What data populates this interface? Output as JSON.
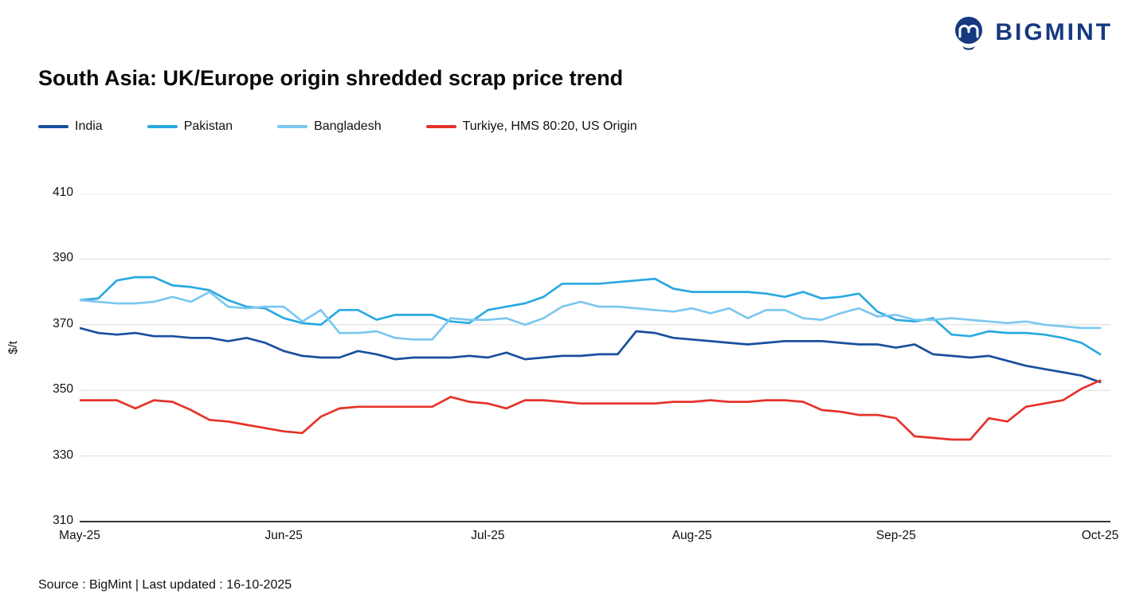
{
  "header": {
    "brand": "BIGMINT",
    "title": "South Asia: UK/Europe origin shredded scrap price trend"
  },
  "footer": {
    "text": "Source : BigMint | Last updated : 16-10-2025"
  },
  "colors": {
    "brand_navy": "#16397f",
    "grid": "#dcdcdc",
    "axis": "#1a1a1a"
  },
  "chart_data": {
    "type": "line",
    "title": "South Asia: UK/Europe origin shredded scrap price trend",
    "xlabel": "",
    "ylabel": "$/t",
    "ylim": [
      310,
      410
    ],
    "yticks": [
      410,
      390,
      370,
      350,
      330,
      310
    ],
    "xticklabels": [
      "May-25",
      "Jun-25",
      "Jul-25",
      "Aug-25",
      "Sep-25",
      "Oct-25"
    ],
    "grid": "horizontal",
    "legend_position": "top-left",
    "series": [
      {
        "name": "India",
        "color": "#1a4f9e",
        "values": [
          369,
          367.5,
          367,
          367.5,
          366.5,
          366.5,
          366,
          366,
          365,
          366,
          364.5,
          362,
          360.5,
          360,
          360,
          362,
          361,
          359.5,
          360,
          360,
          360,
          360.5,
          360,
          361.5,
          359.5,
          360,
          360.5,
          360.5,
          361,
          361,
          368,
          367.5,
          366,
          365.5,
          365,
          364.5,
          364,
          364.5,
          365,
          365,
          365,
          364.5,
          364,
          364,
          363,
          364,
          361,
          360.5,
          360,
          360.5,
          359,
          357.5,
          356.5,
          355.5,
          354.5,
          352.5
        ]
      },
      {
        "name": "Pakistan",
        "color": "#29a9e0",
        "values": [
          377.5,
          378,
          383.5,
          384.5,
          384.5,
          382,
          381.5,
          380.5,
          377.5,
          375.5,
          375,
          372,
          370.5,
          370,
          374.5,
          374.5,
          371.5,
          373,
          373,
          373,
          371,
          370.5,
          374.5,
          375.5,
          376.5,
          378.5,
          382.5,
          382.5,
          382.5,
          383,
          383.5,
          384,
          381,
          380,
          380,
          380,
          380,
          379.5,
          378.5,
          380,
          378,
          378.5,
          379.5,
          374,
          371.5,
          371,
          372,
          367,
          366.5,
          368,
          367.5,
          367.5,
          367,
          366,
          364.5,
          361
        ]
      },
      {
        "name": "Bangladesh",
        "color": "#7cc8ef",
        "values": [
          377.5,
          377,
          376.5,
          376.5,
          377,
          378.5,
          377,
          380,
          375.5,
          375,
          375.5,
          375.5,
          371,
          374.5,
          367.5,
          367.5,
          368,
          366,
          365.5,
          365.5,
          372,
          371.5,
          371.5,
          372,
          370,
          372,
          375.5,
          377,
          375.5,
          375.5,
          375,
          374.5,
          374,
          375,
          373.5,
          375,
          372,
          374.5,
          374.5,
          372,
          371.5,
          373.5,
          375,
          372.5,
          373,
          371.5,
          371.5,
          372,
          371.5,
          371,
          370.5,
          371,
          370,
          369.5,
          369,
          369
        ]
      },
      {
        "name": "Turkiye, HMS 80:20, US Origin",
        "color": "#e5332a",
        "values": [
          347,
          347,
          347,
          344.5,
          347,
          346.5,
          344,
          341,
          340.5,
          339.5,
          338.5,
          337.5,
          337,
          342,
          344.5,
          345,
          345,
          345,
          345,
          345,
          348,
          346.5,
          346,
          344.5,
          347,
          347,
          346.5,
          346,
          346,
          346,
          346,
          346,
          346.5,
          346.5,
          347,
          346.5,
          346.5,
          347,
          347,
          346.5,
          344,
          343.5,
          342.5,
          342.5,
          341.5,
          336,
          335.5,
          335,
          335,
          341.5,
          340.5,
          345,
          346,
          347,
          350.5,
          353
        ]
      }
    ]
  }
}
